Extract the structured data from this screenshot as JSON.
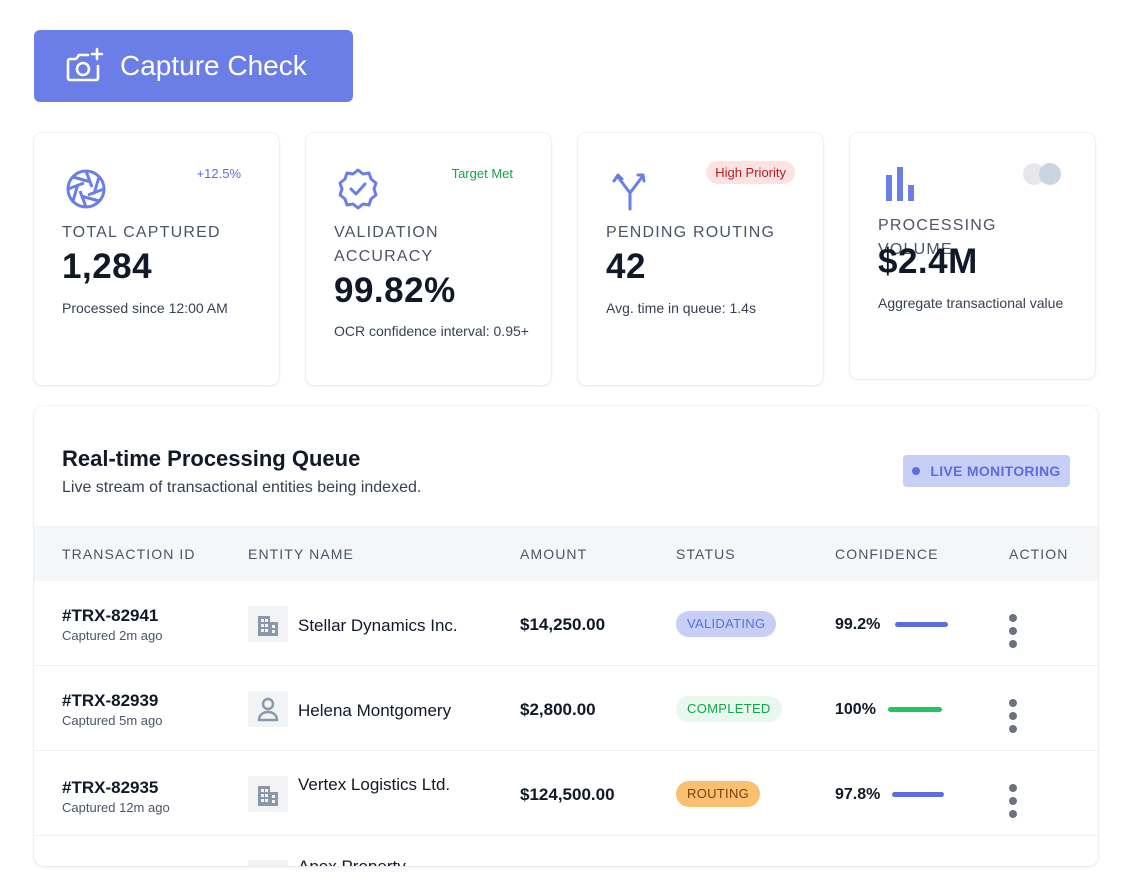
{
  "capture_button": {
    "label": "Capture Check",
    "icon": "camera-plus-icon"
  },
  "stats": [
    {
      "icon": "aperture-icon",
      "badge": "+12.5%",
      "label": "TOTAL CAPTURED",
      "value": "1,284",
      "sub": "Processed since 12:00 AM"
    },
    {
      "icon": "verified-badge-icon",
      "badge": "Target Met",
      "label": "VALIDATION ACCURACY",
      "value": "99.82%",
      "sub": "OCR confidence interval: 0.95+"
    },
    {
      "icon": "fork-arrows-icon",
      "badge": "High Priority",
      "label": "PENDING ROUTING",
      "value": "42",
      "sub": "Avg. time in queue: 1.4s"
    },
    {
      "icon": "bar-chart-icon",
      "badge": "",
      "label": "PROCESSING VOLUME",
      "value": "$2.4M",
      "sub": "Aggregate transactional value"
    }
  ],
  "queue": {
    "title": "Real-time Processing Queue",
    "subtitle": "Live stream of transactional entities being indexed.",
    "live_badge": "LIVE MONITORING",
    "columns": [
      "TRANSACTION ID",
      "ENTITY NAME",
      "AMOUNT",
      "STATUS",
      "CONFIDENCE",
      "ACTION"
    ],
    "rows": [
      {
        "id": "#TRX-82941",
        "time": "Captured 2m ago",
        "entity": "Stellar Dynamics Inc.",
        "entity_icon": "building-icon",
        "amount": "$14,250.00",
        "status": "VALIDATING",
        "confidence": "99.2%",
        "confidence_value": 0.992
      },
      {
        "id": "#TRX-82939",
        "time": "Captured 5m ago",
        "entity": "Helena Montgomery",
        "entity_icon": "person-icon",
        "amount": "$2,800.00",
        "status": "COMPLETED",
        "confidence": "100%",
        "confidence_value": 1.0
      },
      {
        "id": "#TRX-82935",
        "time": "Captured 12m ago",
        "entity": "Vertex Logistics Ltd.",
        "entity_icon": "building-icon",
        "amount": "$124,500.00",
        "status": "ROUTING",
        "confidence": "97.8%",
        "confidence_value": 0.978
      },
      {
        "id": "",
        "time": "",
        "entity": "Apex Property",
        "entity_icon": "building-icon",
        "amount": "",
        "status": "",
        "confidence": "",
        "confidence_value": 0
      }
    ]
  },
  "colors": {
    "accent": "#6b7ee8",
    "success": "#22c55e",
    "danger": "#b91c1c",
    "warning": "#fbbf72"
  }
}
